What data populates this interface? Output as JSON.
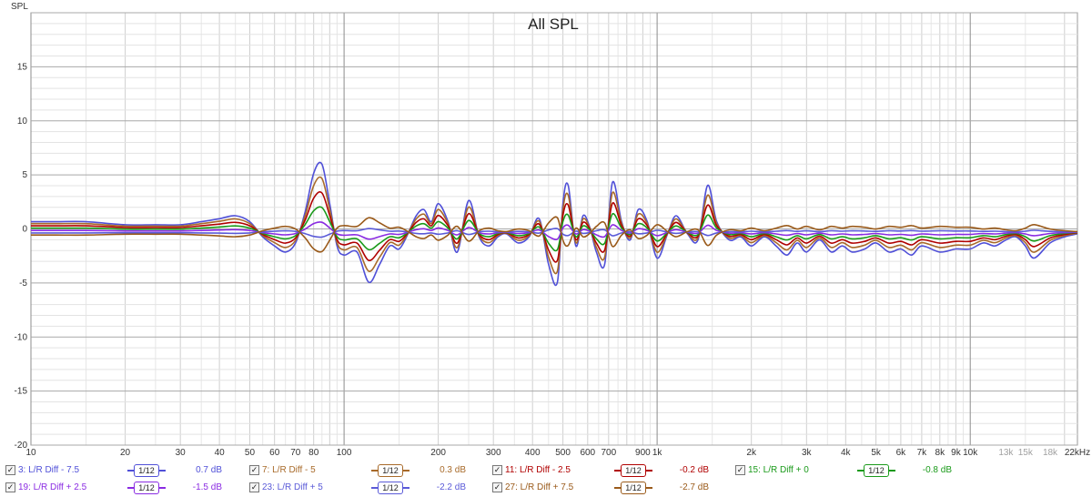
{
  "chart_data": {
    "type": "line",
    "title": "All SPL",
    "ylabel": "SPL",
    "xlabel": "",
    "x_scale": "log",
    "xlim": [
      10,
      22000
    ],
    "ylim": [
      -20,
      20
    ],
    "grid": true,
    "legend_placement": "bottom",
    "y_ticks": [
      "15",
      "10",
      "5",
      "0",
      "-5",
      "-10",
      "-15",
      "-20"
    ],
    "x_ticks": [
      {
        "f": 10,
        "label": "10"
      },
      {
        "f": 20,
        "label": "20"
      },
      {
        "f": 30,
        "label": "30"
      },
      {
        "f": 40,
        "label": "40"
      },
      {
        "f": 50,
        "label": "50"
      },
      {
        "f": 60,
        "label": "60"
      },
      {
        "f": 70,
        "label": "70"
      },
      {
        "f": 80,
        "label": "80"
      },
      {
        "f": 100,
        "label": "100"
      },
      {
        "f": 200,
        "label": "200"
      },
      {
        "f": 300,
        "label": "300"
      },
      {
        "f": 400,
        "label": "400"
      },
      {
        "f": 500,
        "label": "500"
      },
      {
        "f": 600,
        "label": "600"
      },
      {
        "f": 700,
        "label": "700"
      },
      {
        "f": 900,
        "label": "900"
      },
      {
        "f": 1000,
        "label": "1k"
      },
      {
        "f": 2000,
        "label": "2k"
      },
      {
        "f": 3000,
        "label": "3k"
      },
      {
        "f": 4000,
        "label": "4k"
      },
      {
        "f": 5000,
        "label": "5k"
      },
      {
        "f": 6000,
        "label": "6k"
      },
      {
        "f": 7000,
        "label": "7k"
      },
      {
        "f": 8000,
        "label": "8k"
      },
      {
        "f": 9000,
        "label": "9k"
      },
      {
        "f": 10000,
        "label": "10k"
      },
      {
        "f": 13000,
        "label": "13k",
        "dim": true
      },
      {
        "f": 15000,
        "label": "15k",
        "dim": true
      },
      {
        "f": 18000,
        "label": "18k",
        "dim": true
      },
      {
        "f": 22000,
        "label": "22kHz"
      }
    ],
    "base_curve": {
      "x": [
        10,
        12,
        15,
        20,
        25,
        30,
        35,
        40,
        45,
        50,
        55,
        60,
        65,
        70,
        75,
        80,
        85,
        90,
        95,
        100,
        110,
        120,
        130,
        140,
        150,
        160,
        170,
        180,
        190,
        200,
        215,
        230,
        250,
        270,
        290,
        310,
        330,
        360,
        390,
        420,
        450,
        480,
        500,
        520,
        550,
        580,
        610,
        640,
        680,
        720,
        770,
        820,
        870,
        930,
        1000,
        1080,
        1150,
        1250,
        1350,
        1450,
        1550,
        1700,
        1850,
        2000,
        2200,
        2400,
        2600,
        2800,
        3000,
        3300,
        3600,
        3900,
        4200,
        4600,
        5000,
        5500,
        6000,
        6500,
        7000,
        8000,
        9000,
        10000,
        11000,
        12000,
        13000,
        14000,
        15000,
        16000,
        18000,
        20000,
        22000
      ],
      "y": [
        0.2,
        0.2,
        0.2,
        0.1,
        0.1,
        0.1,
        0.2,
        0.3,
        0.4,
        0.2,
        -0.3,
        -0.6,
        -0.8,
        -0.5,
        0.5,
        1.8,
        2.1,
        0.8,
        -0.6,
        -0.9,
        -0.8,
        -1.8,
        -1.2,
        -0.6,
        -0.7,
        -0.2,
        0.4,
        0.6,
        0.2,
        0.8,
        0.2,
        -0.8,
        0.9,
        -0.3,
        -0.6,
        -0.3,
        -0.2,
        -0.5,
        -0.3,
        0.3,
        -1.2,
        -1.8,
        0.8,
        1.4,
        -0.6,
        0.4,
        0.0,
        -0.8,
        -1.2,
        1.5,
        0.2,
        -0.4,
        0.6,
        0.2,
        -1.0,
        -0.2,
        0.4,
        -0.2,
        -0.4,
        1.4,
        0.2,
        -0.4,
        -0.3,
        -0.6,
        -0.3,
        -0.6,
        -0.9,
        -0.5,
        -0.8,
        -0.4,
        -0.8,
        -0.6,
        -0.8,
        -0.7,
        -0.5,
        -0.8,
        -0.7,
        -0.9,
        -0.6,
        -0.8,
        -0.7,
        -0.7,
        -0.5,
        -0.6,
        -0.4,
        -0.3,
        -0.6,
        -1.0,
        -0.5,
        -0.3,
        -0.2
      ]
    },
    "series": [
      {
        "id": "s3",
        "name": "3: L/R Diff - 7.5",
        "color": "#5050d8",
        "smoothing": "1/12",
        "offset": "0.7 dB",
        "scale": 0.75
      },
      {
        "id": "s7",
        "name": "7: L/R Diff - 5",
        "color": "#a86a2a",
        "smoothing": "1/12",
        "offset": "0.3 dB",
        "scale": 0.5
      },
      {
        "id": "s11",
        "name": "11: L/R Diff - 2.5",
        "color": "#b00000",
        "smoothing": "1/12",
        "offset": "-0.2 dB",
        "scale": 0.25
      },
      {
        "id": "s15",
        "name": "15: L/R Diff + 0",
        "color": "#1a9a1a",
        "smoothing": "1/12",
        "offset": "-0.8 dB",
        "scale": 0.0
      },
      {
        "id": "s19",
        "name": "19: L/R Diff + 2.5",
        "color": "#8a2be2",
        "smoothing": "1/12",
        "offset": "-1.5 dB",
        "scale": -0.25
      },
      {
        "id": "s23",
        "name": "23: L/R Diff + 5",
        "color": "#5a5ad8",
        "smoothing": "1/12",
        "offset": "-2.2 dB",
        "scale": -0.5
      },
      {
        "id": "s27",
        "name": "27: L/R Diff + 7.5",
        "color": "#9a5a1a",
        "smoothing": "1/12",
        "offset": "-2.7 dB",
        "scale": -0.75
      }
    ]
  }
}
